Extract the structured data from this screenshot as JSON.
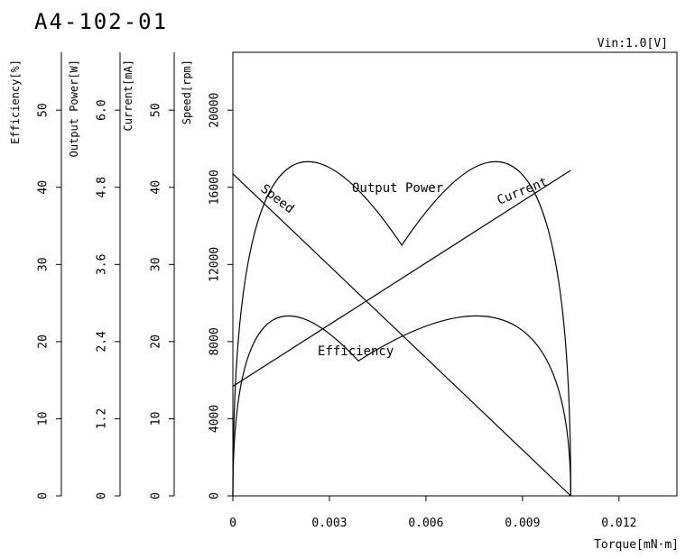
{
  "chart_data": {
    "type": "line",
    "title": "A4-102-01",
    "condition": "Vin:1.0[V]",
    "xlabel": "Torque[mN·m]",
    "x_ticks": [
      "0",
      "0.003",
      "0.006",
      "0.009",
      "0.012"
    ],
    "xlim": [
      0,
      0.0138
    ],
    "grid": false,
    "axes": {
      "speed": {
        "label": "Speed[rpm]",
        "range": [
          0,
          23000
        ],
        "ticks": [
          "0",
          "4000",
          "8000",
          "12000",
          "16000",
          "20000"
        ]
      },
      "current": {
        "label": "Current[mA]",
        "range": [
          0,
          57.5
        ],
        "ticks": [
          "0",
          "10",
          "20",
          "30",
          "40",
          "50"
        ]
      },
      "power": {
        "label": "Output Power[W]",
        "range": [
          0,
          6.9
        ],
        "ticks": [
          "0",
          "1.2",
          "2.4",
          "3.6",
          "4.8",
          "6.0"
        ]
      },
      "efficiency": {
        "label": "Efficiency[%]",
        "range": [
          0,
          57.5
        ],
        "ticks": [
          "0",
          "10",
          "20",
          "30",
          "40",
          "50"
        ]
      }
    },
    "series": [
      {
        "name": "Speed",
        "axis": "speed",
        "x": [
          0,
          0.0105
        ],
        "y": [
          16700,
          0
        ]
      },
      {
        "name": "Current",
        "axis": "current",
        "x": [
          0,
          0.0105
        ],
        "y": [
          14.2,
          42.2
        ]
      },
      {
        "name": "Output Power",
        "axis": "power",
        "x": [
          0,
          0.00525,
          0.0105
        ],
        "y": [
          0,
          3.9,
          0
        ]
      },
      {
        "name": "Efficiency",
        "axis": "efficiency",
        "x": [
          0,
          0.0039,
          0.0105
        ],
        "y": [
          0,
          17.5,
          0
        ]
      }
    ]
  }
}
